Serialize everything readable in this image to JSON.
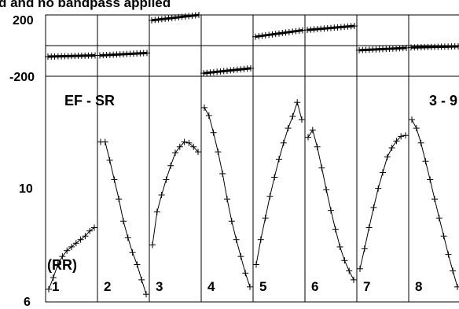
{
  "title_fragment": "d and no bandpass applied",
  "baseline_label": "EF - SR",
  "polarization_label": "(RR)",
  "baseline_id_label": "3 - 9",
  "phase_panel": {
    "tick_labels": [
      "200",
      "-200"
    ]
  },
  "amp_panel": {
    "tick_labels": [
      "10",
      "6"
    ]
  },
  "chart_data": {
    "type": "scatter",
    "panels": [
      {
        "name": "phase",
        "ylim": [
          -200,
          200
        ],
        "series": [
          {
            "channel": "1",
            "x": [
              0.0,
              1.0
            ],
            "y": [
              -72,
              -64
            ]
          },
          {
            "channel": "2",
            "x": [
              0.0,
              1.0
            ],
            "y": [
              -64,
              -48
            ]
          },
          {
            "channel": "3",
            "x": [
              0.0,
              1.0
            ],
            "y": [
              165,
              200
            ]
          },
          {
            "channel": "4",
            "x": [
              0.0,
              1.0
            ],
            "y": [
              -180,
              -148
            ]
          },
          {
            "channel": "5",
            "x": [
              0.0,
              1.0
            ],
            "y": [
              58,
              100
            ]
          },
          {
            "channel": "6",
            "x": [
              0.0,
              1.0
            ],
            "y": [
              102,
              128
            ]
          },
          {
            "channel": "7",
            "x": [
              0.0,
              1.0
            ],
            "y": [
              -30,
              -15
            ]
          },
          {
            "channel": "8",
            "x": [
              0.0,
              1.0
            ],
            "y": [
              -12,
              -5
            ]
          }
        ]
      },
      {
        "name": "amplitude",
        "scale": "log",
        "ylim": [
          6,
          25
        ],
        "series": [
          {
            "channel": "1",
            "x": [
              0.0,
              0.1,
              0.2,
              0.3,
              0.4,
              0.5,
              0.6,
              0.7,
              0.8,
              0.9,
              1.0
            ],
            "y": [
              6.5,
              7.0,
              7.6,
              8.0,
              8.3,
              8.5,
              8.7,
              8.9,
              9.1,
              9.4,
              9.6
            ]
          },
          {
            "channel": "2",
            "x": [
              0.0,
              0.1,
              0.2,
              0.3,
              0.4,
              0.5,
              0.6,
              0.7,
              0.8,
              0.9,
              1.0
            ],
            "y": [
              16.5,
              16.5,
              14.7,
              13.0,
              11.5,
              10.0,
              9.0,
              8.2,
              7.6,
              6.9,
              6.3
            ]
          },
          {
            "channel": "3",
            "x": [
              0.0,
              0.1,
              0.2,
              0.3,
              0.4,
              0.5,
              0.6,
              0.7,
              0.8,
              0.9,
              1.0
            ],
            "y": [
              8.6,
              10.6,
              11.8,
              13.0,
              14.2,
              15.4,
              16.0,
              16.5,
              16.4,
              16.0,
              15.5
            ]
          },
          {
            "channel": "4",
            "x": [
              0.0,
              0.1,
              0.2,
              0.3,
              0.4,
              0.5,
              0.6,
              0.7,
              0.8,
              0.9,
              1.0
            ],
            "y": [
              20.5,
              19.5,
              17.5,
              15.5,
              13.5,
              11.5,
              10.0,
              8.9,
              8.0,
              7.2,
              6.6
            ]
          },
          {
            "channel": "5",
            "x": [
              0.0,
              0.1,
              0.2,
              0.3,
              0.4,
              0.5,
              0.6,
              0.7,
              0.8,
              0.9,
              1.0
            ],
            "y": [
              7.6,
              8.9,
              10.2,
              11.7,
              13.2,
              14.8,
              16.4,
              18.0,
              19.4,
              21.2,
              19.0
            ]
          },
          {
            "channel": "6",
            "x": [
              0.0,
              0.1,
              0.2,
              0.3,
              0.4,
              0.5,
              0.6,
              0.7,
              0.8,
              0.9,
              1.0
            ],
            "y": [
              17.0,
              17.8,
              16.0,
              14.0,
              12.2,
              10.7,
              9.5,
              8.5,
              7.8,
              7.3,
              6.9
            ]
          },
          {
            "channel": "7",
            "x": [
              0.0,
              0.1,
              0.2,
              0.3,
              0.4,
              0.5,
              0.6,
              0.7,
              0.8,
              0.9,
              1.0
            ],
            "y": [
              7.4,
              8.4,
              9.6,
              10.9,
              12.3,
              13.6,
              15.0,
              15.9,
              16.6,
              17.1,
              17.2
            ]
          },
          {
            "channel": "8",
            "x": [
              0.0,
              0.1,
              0.2,
              0.3,
              0.4,
              0.5,
              0.6,
              0.7,
              0.8,
              0.9,
              1.0
            ],
            "y": [
              19.0,
              18.0,
              16.4,
              14.6,
              13.0,
              11.5,
              10.2,
              9.1,
              8.1,
              7.3,
              6.6
            ]
          }
        ]
      }
    ],
    "channels": [
      "1",
      "2",
      "3",
      "4",
      "5",
      "6",
      "7",
      "8"
    ],
    "grid": false
  }
}
